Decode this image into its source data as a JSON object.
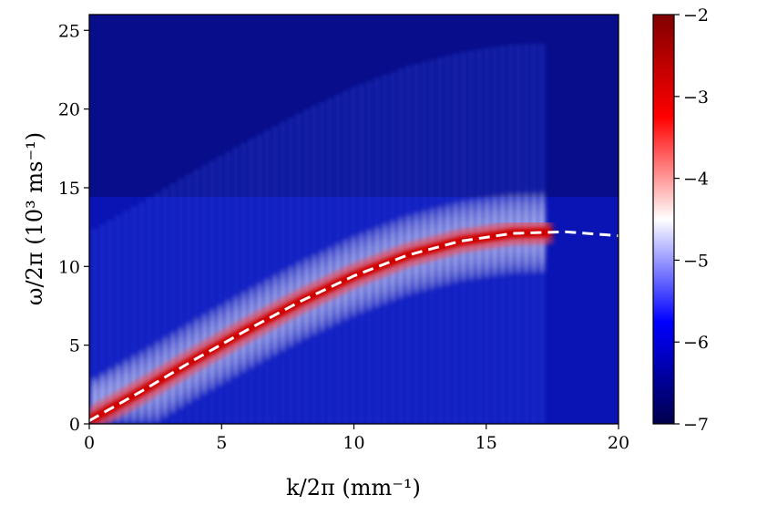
{
  "chart_data": {
    "type": "heatmap",
    "title": "",
    "xlabel": "k/2π (mm⁻¹)",
    "ylabel": "ω/2π (10³ ms⁻¹)",
    "xlim": [
      0,
      20
    ],
    "ylim": [
      0,
      26
    ],
    "xticks": [
      0,
      5,
      10,
      15,
      20
    ],
    "yticks": [
      0,
      5,
      10,
      15,
      20,
      25
    ],
    "colorbar": {
      "range": [
        -7,
        -2
      ],
      "ticks": [
        -7,
        -6,
        -5,
        -4,
        -3,
        -2
      ],
      "colormap": "seismic",
      "colors": {
        "low": "#00004c",
        "mid_low": "#0000ff",
        "mid": "#ffffff",
        "mid_high": "#ff0000",
        "high": "#800000"
      }
    },
    "dispersion_curve": {
      "style": "dashed",
      "color": "#ffffff",
      "points": [
        {
          "k": 0,
          "omega": 0.2
        },
        {
          "k": 2,
          "omega": 2.1
        },
        {
          "k": 4,
          "omega": 4.1
        },
        {
          "k": 6,
          "omega": 6.0
        },
        {
          "k": 8,
          "omega": 7.8
        },
        {
          "k": 10,
          "omega": 9.4
        },
        {
          "k": 12,
          "omega": 10.7
        },
        {
          "k": 14,
          "omega": 11.6
        },
        {
          "k": 16,
          "omega": 12.1
        },
        {
          "k": 18,
          "omega": 12.2
        },
        {
          "k": 20,
          "omega": 11.95
        }
      ]
    }
  }
}
